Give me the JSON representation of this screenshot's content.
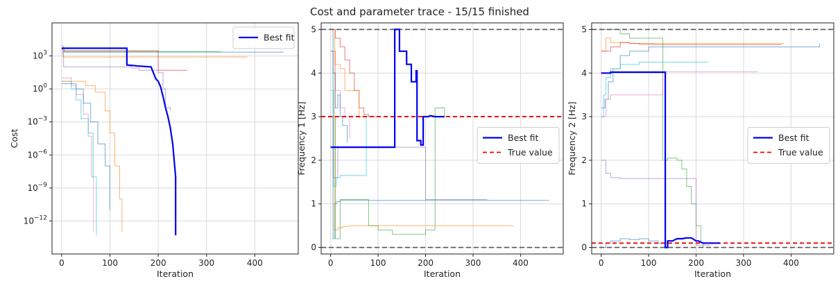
{
  "figure_title": "Cost and parameter trace - 15/15 finished",
  "colors": {
    "best": "#0000ee",
    "true_value": "#ee0000",
    "bounds": "#555555",
    "grid": "#d9d9d9",
    "runs": [
      "#1f77b4",
      "#ff7f0e",
      "#2ca02c",
      "#d62728",
      "#9467bd",
      "#e377c2",
      "#17becf"
    ]
  },
  "chart_data": [
    {
      "type": "line",
      "id": "cost",
      "title": "",
      "xlabel": "Iteration",
      "ylabel": "Cost",
      "yscale": "log",
      "xlim": [
        -20,
        490
      ],
      "ylim": [
        1e-15,
        1000000.0
      ],
      "xticks": [
        0,
        100,
        200,
        300,
        400
      ],
      "yticks": [
        1e-12,
        1e-09,
        1e-06,
        0.001,
        1,
        1000
      ],
      "ytick_labels": [
        "10^-12",
        "10^-9",
        "10^-6",
        "10^-3",
        "10^0",
        "10^3"
      ],
      "grid": true,
      "legend": {
        "position": "top-right",
        "entries": [
          {
            "label": "Best fit",
            "style": "best"
          }
        ]
      },
      "hlines": [],
      "best_fit": {
        "x": [
          0,
          135,
          135,
          160,
          185,
          195,
          200,
          205,
          210,
          215,
          220,
          225,
          230,
          236,
          236
        ],
        "y": [
          5000,
          5000,
          150,
          120,
          100,
          8,
          5,
          1.5,
          0.2,
          0.02,
          0.003,
          0.0003,
          1e-05,
          1e-08,
          5e-14
        ]
      },
      "runs": [
        {
          "x": [
            0,
            2,
            2,
            460
          ],
          "y": [
            2000,
            2000,
            2200,
            2200
          ]
        },
        {
          "x": [
            0,
            3,
            3,
            385
          ],
          "y": [
            1500,
            1500,
            800,
            800
          ]
        },
        {
          "x": [
            0,
            5,
            5,
            330
          ],
          "y": [
            3000,
            3000,
            2500,
            2500
          ]
        },
        {
          "x": [
            0,
            5,
            5,
            200,
            200,
            260
          ],
          "y": [
            4000,
            4000,
            3000,
            3000,
            50,
            50
          ]
        },
        {
          "x": [
            0,
            4,
            4,
            140,
            145,
            160,
            200,
            210,
            215,
            225
          ],
          "y": [
            8000,
            8000,
            100,
            100,
            80,
            50,
            30,
            1,
            0.02,
            0.01
          ]
        },
        {
          "x": [
            0,
            20,
            30,
            45,
            55,
            62,
            66,
            66
          ],
          "y": [
            10,
            2,
            0.3,
            0.005,
            5e-05,
            1e-08,
            1e-11,
            1e-13
          ]
        },
        {
          "x": [
            0,
            20,
            30,
            40,
            55,
            65,
            72,
            72
          ],
          "y": [
            5,
            1,
            0.1,
            0.002,
            0.0001,
            1e-08,
            1e-12,
            5e-14
          ]
        },
        {
          "x": [
            0,
            30,
            45,
            60,
            75,
            90,
            100,
            100
          ],
          "y": [
            3,
            1,
            0.05,
            0.001,
            1e-05,
            1e-07,
            1e-10,
            1e-11
          ]
        },
        {
          "x": [
            0,
            50,
            70,
            90,
            100,
            110,
            120,
            125,
            125
          ],
          "y": [
            5,
            2,
            0.5,
            0.01,
            0.0001,
            1e-07,
            1e-10,
            1e-12,
            1e-13
          ]
        }
      ]
    },
    {
      "type": "line",
      "id": "freq1",
      "title": "",
      "xlabel": "Iteration",
      "ylabel": "Frequency 1 [Hz]",
      "yscale": "linear",
      "xlim": [
        -20,
        490
      ],
      "ylim": [
        -0.15,
        5.15
      ],
      "xticks": [
        0,
        100,
        200,
        300,
        400
      ],
      "yticks": [
        0,
        1,
        2,
        3,
        4,
        5
      ],
      "ytick_labels": [
        "0",
        "1",
        "2",
        "3",
        "4",
        "5"
      ],
      "grid": true,
      "legend": {
        "position": "center-right",
        "entries": [
          {
            "label": "Best fit",
            "style": "best"
          },
          {
            "label": "True value",
            "style": "true"
          }
        ]
      },
      "hlines": [
        {
          "y": 0,
          "style": "bounds"
        },
        {
          "y": 5,
          "style": "bounds"
        },
        {
          "y": 3,
          "style": "true"
        }
      ],
      "best_fit": {
        "x": [
          0,
          135,
          135,
          145,
          145,
          160,
          160,
          170,
          170,
          180,
          180,
          182,
          182,
          190,
          190,
          195,
          195,
          205,
          210,
          220,
          240
        ],
        "y": [
          2.3,
          2.3,
          5.0,
          5.0,
          4.5,
          4.5,
          4.2,
          4.2,
          3.8,
          3.8,
          4.05,
          4.05,
          2.45,
          2.45,
          2.35,
          2.35,
          3.0,
          3.0,
          3.02,
          3.0,
          3.0
        ]
      },
      "runs": [
        {
          "x": [
            0,
            5,
            8,
            12,
            20,
            460
          ],
          "y": [
            4.5,
            0.2,
            1.0,
            1.05,
            1.08,
            1.08
          ]
        },
        {
          "x": [
            0,
            8,
            15,
            25,
            40,
            385
          ],
          "y": [
            5.0,
            0.4,
            0.45,
            0.48,
            0.5,
            0.5
          ]
        },
        {
          "x": [
            0,
            10,
            20,
            80,
            100,
            130,
            200,
            220,
            240
          ],
          "y": [
            3.0,
            0.2,
            1.1,
            0.5,
            0.4,
            0.3,
            0.4,
            3.2,
            3.0
          ]
        },
        {
          "x": [
            0,
            10,
            20,
            30,
            40,
            50,
            60,
            70,
            80,
            100
          ],
          "y": [
            5.0,
            4.8,
            4.6,
            4.3,
            4.0,
            3.6,
            3.2,
            3.05,
            3.0,
            3.0
          ]
        },
        {
          "x": [
            0,
            5,
            15,
            180,
            200,
            200,
            330
          ],
          "y": [
            3.0,
            1.6,
            2.3,
            2.3,
            1.9,
            1.1,
            1.1
          ]
        },
        {
          "x": [
            0,
            10,
            20,
            30,
            40,
            40
          ],
          "y": [
            4.5,
            3.6,
            3.2,
            3.0,
            2.5,
            2.5
          ]
        },
        {
          "x": [
            0,
            6,
            12,
            20,
            40,
            75,
            75,
            90
          ],
          "y": [
            3.6,
            1.4,
            1.6,
            1.65,
            1.65,
            1.65,
            3.0,
            3.0
          ]
        },
        {
          "x": [
            0,
            5,
            10,
            15,
            20,
            25,
            35,
            35
          ],
          "y": [
            5.0,
            4.0,
            3.2,
            3.5,
            3.0,
            2.8,
            2.5,
            2.4
          ]
        },
        {
          "x": [
            0,
            10,
            20,
            30,
            60,
            70,
            75
          ],
          "y": [
            4.5,
            4.2,
            4.1,
            3.6,
            3.0,
            3.0,
            3.0
          ]
        }
      ]
    },
    {
      "type": "line",
      "id": "freq2",
      "title": "",
      "xlabel": "Iteration",
      "ylabel": "Frequency 2 [Hz]",
      "yscale": "linear",
      "xlim": [
        -20,
        490
      ],
      "ylim": [
        -0.15,
        5.15
      ],
      "xticks": [
        0,
        100,
        200,
        300,
        400
      ],
      "yticks": [
        0,
        1,
        2,
        3,
        4,
        5
      ],
      "ytick_labels": [
        "0",
        "1",
        "2",
        "3",
        "4",
        "5"
      ],
      "grid": true,
      "legend": {
        "position": "center-right",
        "entries": [
          {
            "label": "Best fit",
            "style": "best"
          },
          {
            "label": "True value",
            "style": "true"
          }
        ]
      },
      "hlines": [
        {
          "y": 0,
          "style": "bounds"
        },
        {
          "y": 5,
          "style": "bounds"
        },
        {
          "y": 0.1,
          "style": "true"
        }
      ],
      "best_fit": {
        "x": [
          0,
          20,
          20,
          135,
          135,
          140,
          140,
          150,
          160,
          170,
          180,
          190,
          200,
          205,
          210,
          215,
          250
        ],
        "y": [
          4.0,
          4.0,
          4.02,
          4.02,
          0.0,
          0.0,
          0.15,
          0.15,
          0.2,
          0.2,
          0.22,
          0.22,
          0.15,
          0.15,
          0.12,
          0.1,
          0.1
        ]
      },
      "runs": [
        {
          "x": [
            0,
            8,
            15,
            25,
            40,
            60,
            100,
            460
          ],
          "y": [
            3.2,
            3.4,
            3.8,
            4.1,
            4.4,
            4.5,
            4.6,
            4.67
          ]
        },
        {
          "x": [
            0,
            10,
            20,
            40,
            60,
            70,
            385
          ],
          "y": [
            4.5,
            4.8,
            4.7,
            4.7,
            4.68,
            4.68,
            4.68
          ]
        },
        {
          "x": [
            0,
            20,
            40,
            60,
            80,
            100,
            130,
            140,
            150,
            160,
            170,
            180,
            190,
            200,
            210,
            215
          ],
          "y": [
            5.0,
            5.0,
            4.9,
            4.8,
            4.8,
            4.8,
            2.0,
            2.05,
            2.05,
            2.0,
            1.8,
            1.4,
            1.0,
            0.5,
            0.1,
            0.0
          ]
        },
        {
          "x": [
            0,
            20,
            40,
            60,
            80,
            100,
            110,
            380
          ],
          "y": [
            4.5,
            4.6,
            4.7,
            4.68,
            4.66,
            4.66,
            4.65,
            4.65
          ]
        },
        {
          "x": [
            0,
            10,
            20,
            40,
            200,
            200,
            210,
            230
          ],
          "y": [
            2.0,
            1.7,
            1.6,
            1.58,
            1.58,
            0.05,
            0.05,
            0.05
          ]
        },
        {
          "x": [
            0,
            10,
            20,
            130,
            130,
            330
          ],
          "y": [
            3.0,
            3.4,
            3.5,
            3.5,
            4.03,
            4.03
          ]
        },
        {
          "x": [
            0,
            5,
            10,
            20,
            40,
            80,
            100,
            225
          ],
          "y": [
            3.0,
            3.5,
            3.9,
            4.1,
            4.2,
            4.25,
            4.25,
            4.25
          ]
        },
        {
          "x": [
            0,
            10,
            20,
            40,
            60,
            80,
            100,
            120,
            140
          ],
          "y": [
            0.0,
            0.1,
            0.15,
            0.2,
            0.18,
            0.2,
            0.15,
            0.1,
            0.05
          ]
        }
      ]
    }
  ]
}
